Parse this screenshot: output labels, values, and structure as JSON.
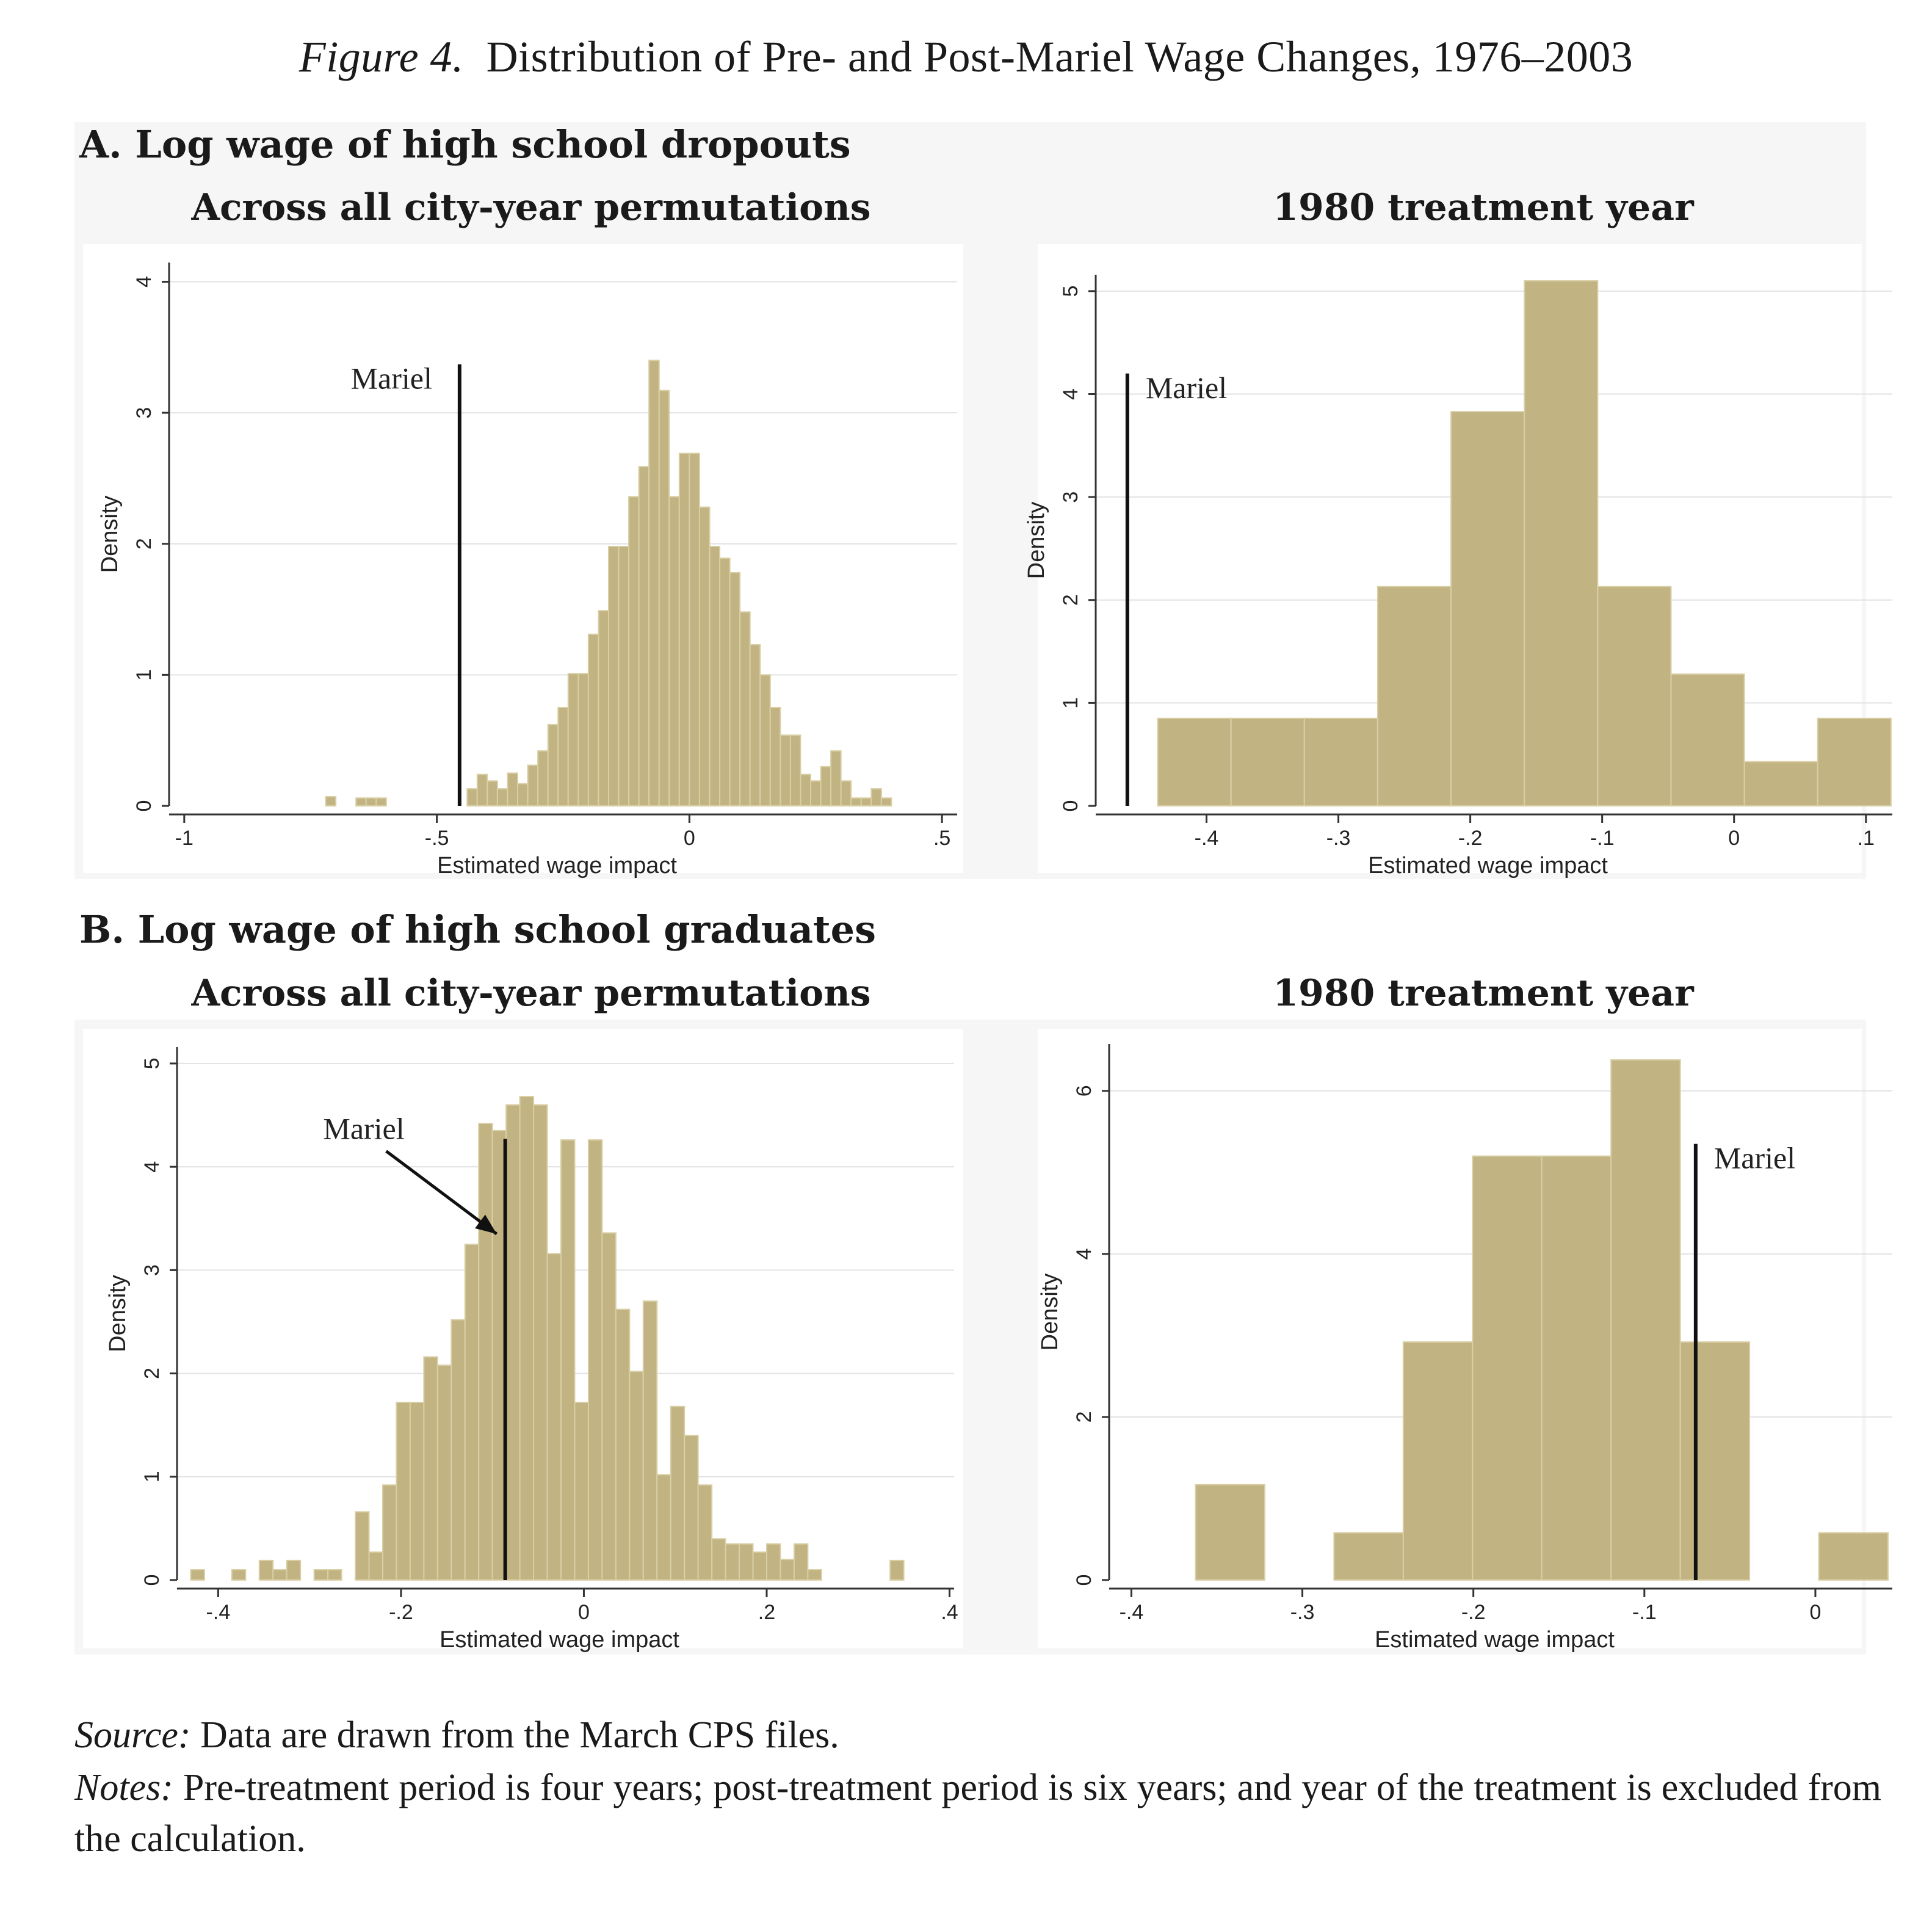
{
  "figure": {
    "label": "Figure 4.",
    "title": "Distribution of Pre- and Post-Mariel Wage Changes, 1976–2003"
  },
  "panelA": {
    "heading": "A. Log wage of high school dropouts"
  },
  "panelB": {
    "heading": "B. Log wage of high school graduates"
  },
  "source": {
    "label": "Source:",
    "text": "Data are drawn from the March CPS files."
  },
  "notes": {
    "label": "Notes:",
    "text": "Pre-treatment period is four years; post-treatment period is six years; and year of the treatment is excluded from the calculation."
  },
  "colors": {
    "bar_fill": "#c2b482",
    "bar_edge": "#d9cfa6",
    "mariel_line": "#111111",
    "grid": "#e2e2e2"
  },
  "chart_data": [
    {
      "id": "A1",
      "type": "bar",
      "subtitle": "Across all city-year permutations",
      "xlabel": "Estimated wage impact",
      "ylabel": "Density",
      "xlim": [
        -1.03,
        0.53
      ],
      "ylim": [
        0,
        4.1
      ],
      "xticks": [
        -1,
        -0.5,
        0,
        0.5
      ],
      "xtick_labels": [
        "-1",
        "-.5",
        "0",
        ".5"
      ],
      "yticks": [
        0,
        1,
        2,
        3,
        4
      ],
      "ytick_labels": [
        "0",
        "1",
        "2",
        "3",
        "4"
      ],
      "bin_start": -0.74,
      "bin_width": 0.02,
      "values": [
        0,
        0.07,
        0,
        0,
        0.06,
        0.06,
        0.06,
        0,
        0,
        0,
        0,
        0,
        0,
        0,
        0,
        0.13,
        0.24,
        0.19,
        0.13,
        0.25,
        0.17,
        0.31,
        0.42,
        0.62,
        0.75,
        1.01,
        1.01,
        1.31,
        1.49,
        1.98,
        1.98,
        2.36,
        2.59,
        3.4,
        3.17,
        2.36,
        2.69,
        2.69,
        2.28,
        1.98,
        1.89,
        1.78,
        1.48,
        1.23,
        1,
        0.75,
        0.54,
        0.54,
        0.24,
        0.19,
        0.3,
        0.42,
        0.19,
        0.06,
        0.06,
        0.13,
        0.06
      ],
      "mariel": {
        "label": "Mariel",
        "x": -0.455,
        "y_top": 3.37
      }
    },
    {
      "id": "A2",
      "type": "bar",
      "subtitle": "1980 treatment year",
      "xlabel": "Estimated wage impact",
      "ylabel": "Density",
      "xlim": [
        -0.484,
        0.12
      ],
      "ylim": [
        0,
        5.1
      ],
      "xticks": [
        -0.4,
        -0.3,
        -0.2,
        -0.1,
        0,
        0.1
      ],
      "xtick_labels": [
        "-.4",
        "-.3",
        "-.2",
        "-.1",
        "0",
        ".1"
      ],
      "yticks": [
        0,
        1,
        2,
        3,
        4,
        5
      ],
      "ytick_labels": [
        "0",
        "1",
        "2",
        "3",
        "4",
        "5"
      ],
      "bin_start": -0.437,
      "bin_width": 0.0556,
      "values": [
        0.85,
        0.85,
        0.85,
        2.13,
        3.83,
        5.1,
        2.13,
        1.28,
        0.43,
        0.85
      ],
      "mariel": {
        "label": "Mariel",
        "x": -0.46,
        "y_top": 4.2
      }
    },
    {
      "id": "B1",
      "type": "bar",
      "subtitle": "Across all city-year permutations",
      "xlabel": "Estimated wage impact",
      "ylabel": "Density",
      "xlim": [
        -0.445,
        0.405
      ],
      "ylim": [
        0,
        5.1
      ],
      "xticks": [
        -0.4,
        -0.2,
        0,
        0.2,
        0.4
      ],
      "xtick_labels": [
        "-.4",
        "-.2",
        "0",
        ".2",
        ".4"
      ],
      "yticks": [
        0,
        1,
        2,
        3,
        4,
        5
      ],
      "ytick_labels": [
        "0",
        "1",
        "2",
        "3",
        "4",
        "5"
      ],
      "bin_start": -0.43,
      "bin_width": 0.015,
      "values": [
        0.1,
        0,
        0,
        0.1,
        0,
        0.19,
        0.1,
        0.19,
        0,
        0.1,
        0.1,
        0,
        0.66,
        0.27,
        0.92,
        1.72,
        1.72,
        2.16,
        2.08,
        2.52,
        3.25,
        4.42,
        4.35,
        4.6,
        4.68,
        4.6,
        3.16,
        4.26,
        1.72,
        4.26,
        3.36,
        2.62,
        2.02,
        2.7,
        1.02,
        1.68,
        1.4,
        0.92,
        0.4,
        0.35,
        0.35,
        0.27,
        0.35,
        0.2,
        0.35,
        0.1,
        0,
        0,
        0,
        0,
        0,
        0.19
      ],
      "mariel": {
        "label": "Mariel",
        "x": -0.086,
        "y_top": 4.27
      }
    },
    {
      "id": "B2",
      "type": "bar",
      "subtitle": "1980 treatment year",
      "xlabel": "Estimated wage impact",
      "ylabel": "Density",
      "xlim": [
        -0.413,
        0.045
      ],
      "ylim": [
        0,
        6.5
      ],
      "xticks": [
        -0.4,
        -0.3,
        -0.2,
        -0.1,
        0
      ],
      "xtick_labels": [
        "-.4",
        "-.3",
        "-.2",
        "-.1",
        "0"
      ],
      "yticks": [
        0,
        2,
        4,
        6
      ],
      "ytick_labels": [
        "0",
        "2",
        "4",
        "6"
      ],
      "bin_start": -0.3625,
      "bin_width": 0.0405,
      "values": [
        1.17,
        0,
        0.58,
        2.92,
        5.2,
        5.2,
        6.38,
        2.92,
        0,
        0.58
      ],
      "mariel": {
        "label": "Mariel",
        "x": -0.07,
        "y_top": 5.35
      }
    }
  ]
}
